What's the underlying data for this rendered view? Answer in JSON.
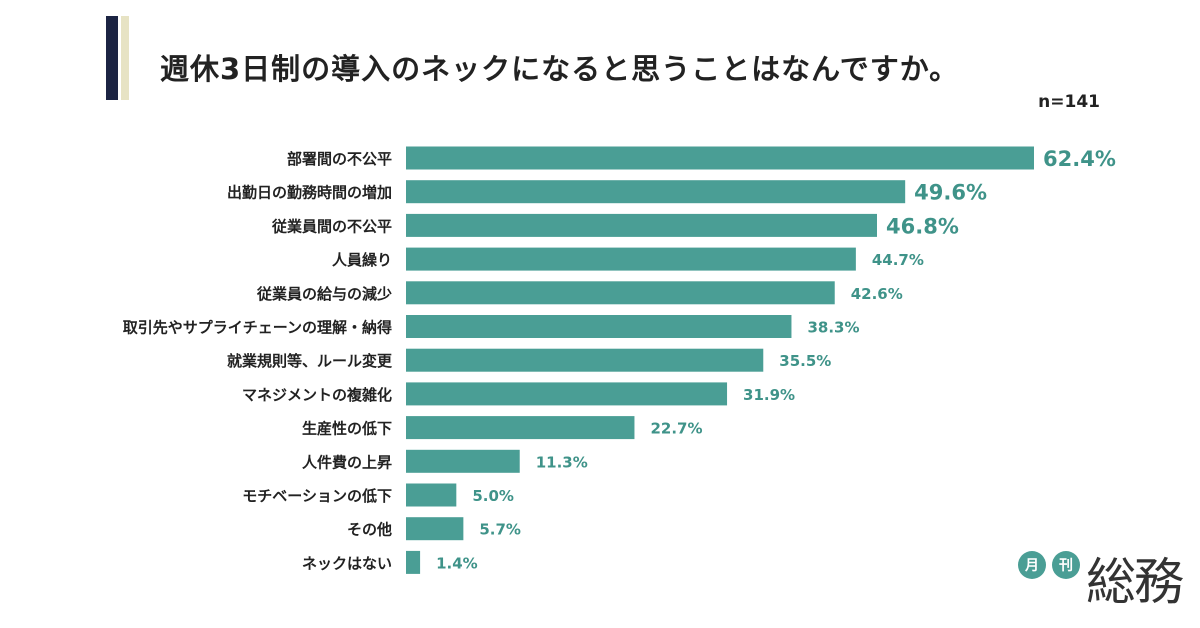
{
  "title": "週休3日制の導入のネックになると思うことはなんですか。",
  "sample_size": "n=141",
  "brand": {
    "circle1": "月",
    "circle2": "刊",
    "word": "総務"
  },
  "colors": {
    "bar": "#4a9e95",
    "accent_navy": "#1c2443",
    "accent_cream": "#e7e3c4",
    "value_text": "#3f9389"
  },
  "chart_data": {
    "type": "bar",
    "orientation": "horizontal",
    "unit": "%",
    "xlim": [
      0,
      62.4
    ],
    "grid": false,
    "categories": [
      "部署間の不公平",
      "出勤日の勤務時間の増加",
      "従業員間の不公平",
      "人員繰り",
      "従業員の給与の減少",
      "取引先やサプライチェーンの理解・納得",
      "就業規則等、ルール変更",
      "マネジメントの複雑化",
      "生産性の低下",
      "人件費の上昇",
      "モチベーションの低下",
      "その他",
      "ネックはない"
    ],
    "values": [
      62.4,
      49.6,
      46.8,
      44.7,
      42.6,
      38.3,
      35.5,
      31.9,
      22.7,
      11.3,
      5.0,
      5.7,
      1.4
    ],
    "value_labels": [
      "62.4%",
      "49.6%",
      "46.8%",
      "44.7%",
      "42.6%",
      "38.3%",
      "35.5%",
      "31.9%",
      "22.7%",
      "11.3%",
      "5.0%",
      "5.7%",
      "1.4%"
    ]
  }
}
